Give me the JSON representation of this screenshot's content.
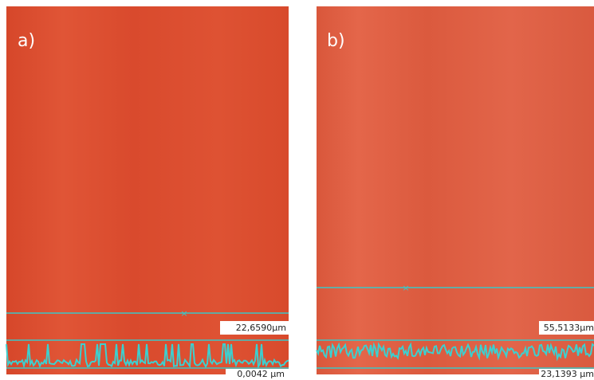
{
  "panels": [
    {
      "label": "a)",
      "upper_value": "22,6590µm",
      "lower_value": "0,0042 µm"
    },
    {
      "label": "b)",
      "upper_value": "55,5133µm",
      "lower_value": "23,1393 µm"
    }
  ]
}
